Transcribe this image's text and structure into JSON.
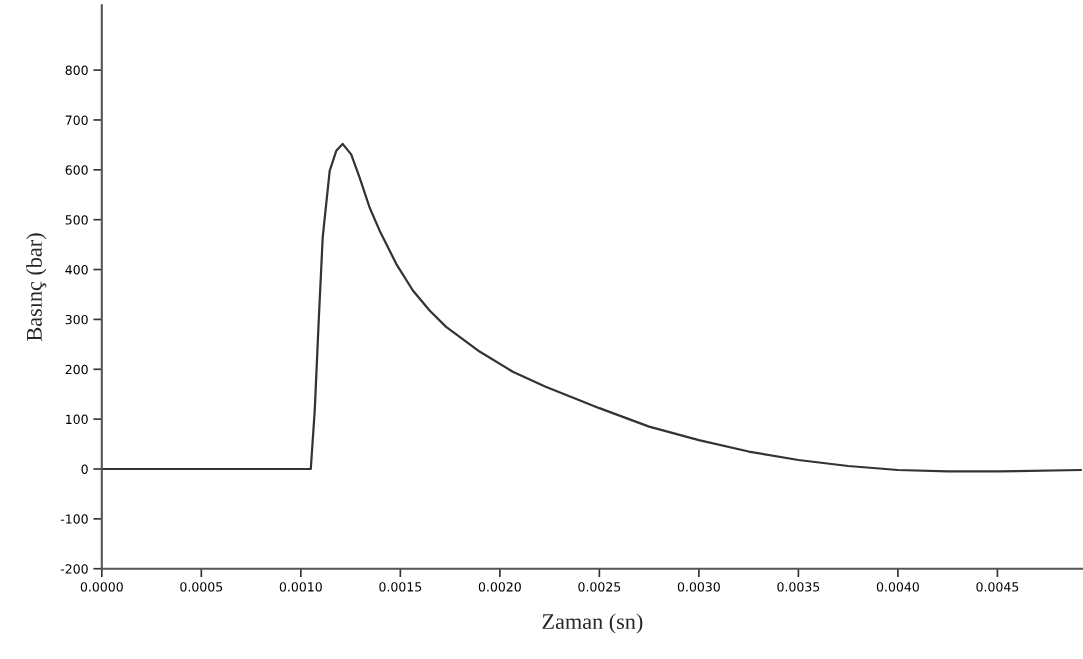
{
  "chart_data": {
    "type": "line",
    "xlabel": "Zaman (sn)",
    "ylabel": "Basınç (bar)",
    "xlim": [
      0,
      0.00493
    ],
    "ylim": [
      -200,
      930
    ],
    "xticks": [
      {
        "value": 0,
        "label": "0.0000"
      },
      {
        "value": 0.0005,
        "label": "0.0005"
      },
      {
        "value": 0.001,
        "label": "0.0010"
      },
      {
        "value": 0.0015,
        "label": "0.0015"
      },
      {
        "value": 0.002,
        "label": "0.0020"
      },
      {
        "value": 0.0025,
        "label": "0.0025"
      },
      {
        "value": 0.003,
        "label": "0.0030"
      },
      {
        "value": 0.0035,
        "label": "0.0035"
      },
      {
        "value": 0.004,
        "label": "0.0040"
      },
      {
        "value": 0.0045,
        "label": "0.0045"
      }
    ],
    "yticks": [
      -200,
      -100,
      0,
      100,
      200,
      300,
      400,
      500,
      600,
      700,
      800
    ],
    "grid": false,
    "marker": "none",
    "line_style": "solid",
    "series": [
      {
        "color": "#333333",
        "x": [
          0,
          0.00105,
          0.00107,
          0.00109,
          0.00111,
          0.001145,
          0.001178,
          0.00121,
          0.001253,
          0.001295,
          0.001345,
          0.001396,
          0.00148,
          0.001563,
          0.001647,
          0.00173,
          0.0019,
          0.002065,
          0.00223,
          0.0024,
          0.0025,
          0.00275,
          0.003,
          0.00325,
          0.0035,
          0.00375,
          0.004,
          0.00425,
          0.0045,
          0.00492
        ],
        "values": [
          0,
          0,
          118,
          298,
          465,
          598,
          638,
          652,
          631,
          585,
          525,
          478,
          411,
          358,
          318,
          285,
          235,
          195,
          165,
          138,
          122,
          85,
          58,
          35,
          18,
          6,
          -2,
          -5,
          -5,
          -2
        ]
      }
    ]
  }
}
